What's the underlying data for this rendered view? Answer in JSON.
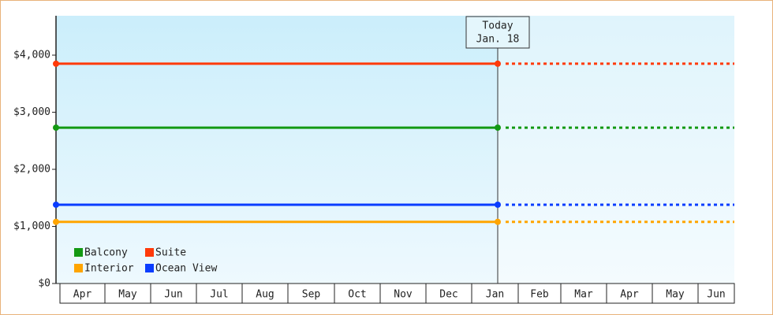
{
  "chart_data": {
    "type": "line",
    "categories": [
      "Apr",
      "May",
      "Jun",
      "Jul",
      "Aug",
      "Sep",
      "Oct",
      "Nov",
      "Dec",
      "Jan",
      "Feb",
      "Mar",
      "Apr",
      "May",
      "Jun"
    ],
    "today_label": [
      "Today",
      "Jan. 18"
    ],
    "series": [
      {
        "name": "Balcony",
        "color": "#139913",
        "value": 2730
      },
      {
        "name": "Suite",
        "color": "#ff3a0a",
        "value": 3850
      },
      {
        "name": "Interior",
        "color": "#ffa500",
        "value": 1080
      },
      {
        "name": "Ocean View",
        "color": "#0a3dff",
        "value": 1380
      }
    ],
    "ylim": [
      0,
      4690
    ],
    "yticks": [
      {
        "value": 0,
        "label": "$0"
      },
      {
        "value": 1000,
        "label": "$1,000"
      },
      {
        "value": 2000,
        "label": "$2,000"
      },
      {
        "value": 3000,
        "label": "$3,000"
      },
      {
        "value": 4000,
        "label": "$4,000"
      }
    ]
  }
}
